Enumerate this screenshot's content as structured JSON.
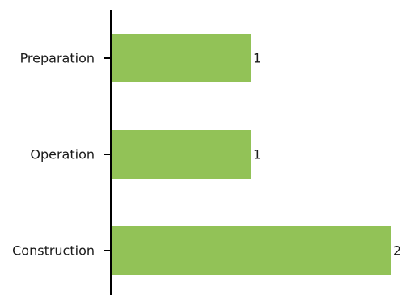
{
  "chart_data": {
    "type": "bar",
    "orientation": "horizontal",
    "categories": [
      "Preparation",
      "Operation",
      "Construction"
    ],
    "values": [
      1,
      1,
      2
    ],
    "data_labels": [
      "1",
      "1",
      "2"
    ],
    "xlim": [
      0,
      2
    ],
    "title": "",
    "xlabel": "",
    "ylabel": "",
    "grid": false,
    "legend": "none",
    "colors": {
      "bar": "#92c257",
      "axis": "#000000",
      "text": "#1a1a1a"
    }
  }
}
